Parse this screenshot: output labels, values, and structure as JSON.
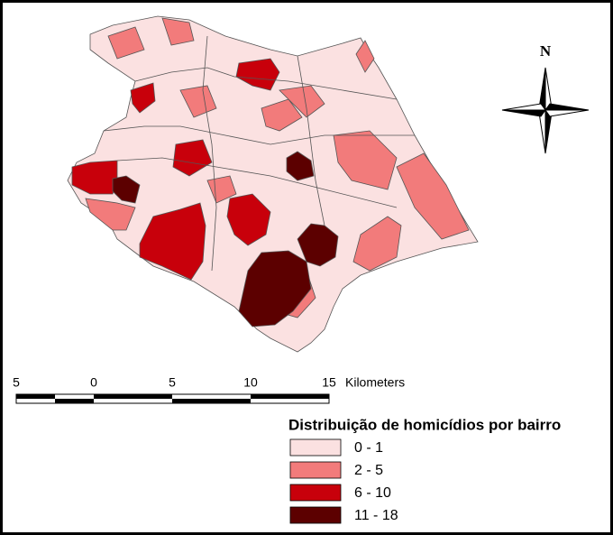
{
  "compass": {
    "label": "N"
  },
  "scale_bar": {
    "labels": [
      "5",
      "0",
      "5",
      "10",
      "15"
    ],
    "unit": "Kilometers"
  },
  "legend": {
    "title": "Distribuição de homicídios por bairro",
    "items": [
      {
        "label": "0 - 1",
        "color": "#fbe1e1"
      },
      {
        "label": "2 - 5",
        "color": "#f27b7b"
      },
      {
        "label": "6 - 10",
        "color": "#c8000b"
      },
      {
        "label": "11 - 18",
        "color": "#5c0000"
      }
    ]
  }
}
